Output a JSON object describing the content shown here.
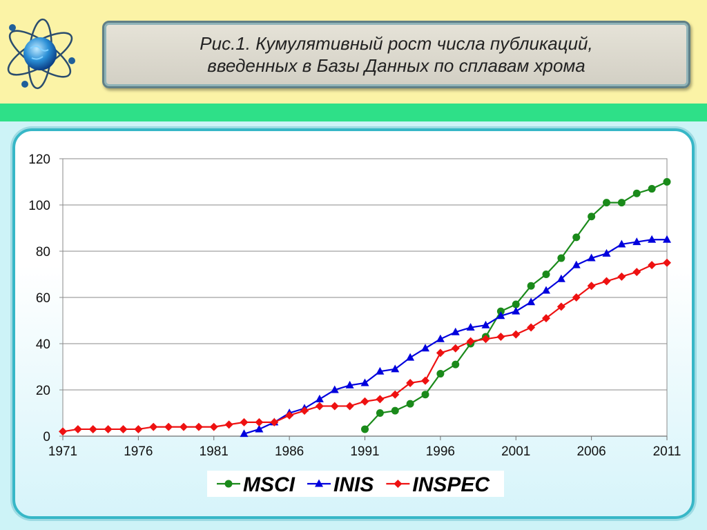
{
  "header": {
    "title_line1": "Рис.1. Кумулятивный рост числа публикаций,",
    "title_line2": "введенных в Базы Данных по сплавам хрома"
  },
  "colors": {
    "top_band": "#fbf3a6",
    "green_band": "#2ee088",
    "msci": "#1a8a1a",
    "inis": "#0000dd",
    "inspec": "#ee1111"
  },
  "icons": {
    "logo": "atom-globe-icon"
  },
  "chart_data": {
    "type": "line",
    "xlim": [
      1971,
      2011
    ],
    "ylim": [
      0,
      120
    ],
    "x_ticks": [
      1971,
      1976,
      1981,
      1986,
      1991,
      1996,
      2001,
      2006,
      2011
    ],
    "y_ticks": [
      0,
      20,
      40,
      60,
      80,
      100,
      120
    ],
    "grid": "horizontal",
    "legend": "bottom",
    "series": [
      {
        "name": "MSCI",
        "color": "#1a8a1a",
        "marker": "circle",
        "points": [
          [
            1991,
            3
          ],
          [
            1992,
            10
          ],
          [
            1993,
            11
          ],
          [
            1994,
            14
          ],
          [
            1995,
            18
          ],
          [
            1996,
            27
          ],
          [
            1997,
            31
          ],
          [
            1998,
            40
          ],
          [
            1999,
            43
          ],
          [
            2000,
            54
          ],
          [
            2001,
            57
          ],
          [
            2002,
            65
          ],
          [
            2003,
            70
          ],
          [
            2004,
            77
          ],
          [
            2005,
            86
          ],
          [
            2006,
            95
          ],
          [
            2007,
            101
          ],
          [
            2008,
            101
          ],
          [
            2009,
            105
          ],
          [
            2010,
            107
          ],
          [
            2011,
            110
          ]
        ]
      },
      {
        "name": "INIS",
        "color": "#0000dd",
        "marker": "triangle",
        "points": [
          [
            1983,
            1
          ],
          [
            1984,
            3
          ],
          [
            1985,
            6
          ],
          [
            1986,
            10
          ],
          [
            1987,
            12
          ],
          [
            1988,
            16
          ],
          [
            1989,
            20
          ],
          [
            1990,
            22
          ],
          [
            1991,
            23
          ],
          [
            1992,
            28
          ],
          [
            1993,
            29
          ],
          [
            1994,
            34
          ],
          [
            1995,
            38
          ],
          [
            1996,
            42
          ],
          [
            1997,
            45
          ],
          [
            1998,
            47
          ],
          [
            1999,
            48
          ],
          [
            2000,
            52
          ],
          [
            2001,
            54
          ],
          [
            2002,
            58
          ],
          [
            2003,
            63
          ],
          [
            2004,
            68
          ],
          [
            2005,
            74
          ],
          [
            2006,
            77
          ],
          [
            2007,
            79
          ],
          [
            2008,
            83
          ],
          [
            2009,
            84
          ],
          [
            2010,
            85
          ],
          [
            2011,
            85
          ]
        ]
      },
      {
        "name": "INSPEC",
        "color": "#ee1111",
        "marker": "diamond",
        "points": [
          [
            1971,
            2
          ],
          [
            1972,
            3
          ],
          [
            1973,
            3
          ],
          [
            1974,
            3
          ],
          [
            1975,
            3
          ],
          [
            1976,
            3
          ],
          [
            1977,
            4
          ],
          [
            1978,
            4
          ],
          [
            1979,
            4
          ],
          [
            1980,
            4
          ],
          [
            1981,
            4
          ],
          [
            1982,
            5
          ],
          [
            1983,
            6
          ],
          [
            1984,
            6
          ],
          [
            1985,
            6
          ],
          [
            1986,
            9
          ],
          [
            1987,
            11
          ],
          [
            1988,
            13
          ],
          [
            1989,
            13
          ],
          [
            1990,
            13
          ],
          [
            1991,
            15
          ],
          [
            1992,
            16
          ],
          [
            1993,
            18
          ],
          [
            1994,
            23
          ],
          [
            1995,
            24
          ],
          [
            1996,
            36
          ],
          [
            1997,
            38
          ],
          [
            1998,
            41
          ],
          [
            1999,
            42
          ],
          [
            2000,
            43
          ],
          [
            2001,
            44
          ],
          [
            2002,
            47
          ],
          [
            2003,
            51
          ],
          [
            2004,
            56
          ],
          [
            2005,
            60
          ],
          [
            2006,
            65
          ],
          [
            2007,
            67
          ],
          [
            2008,
            69
          ],
          [
            2009,
            71
          ],
          [
            2010,
            74
          ],
          [
            2011,
            75
          ]
        ]
      }
    ]
  }
}
